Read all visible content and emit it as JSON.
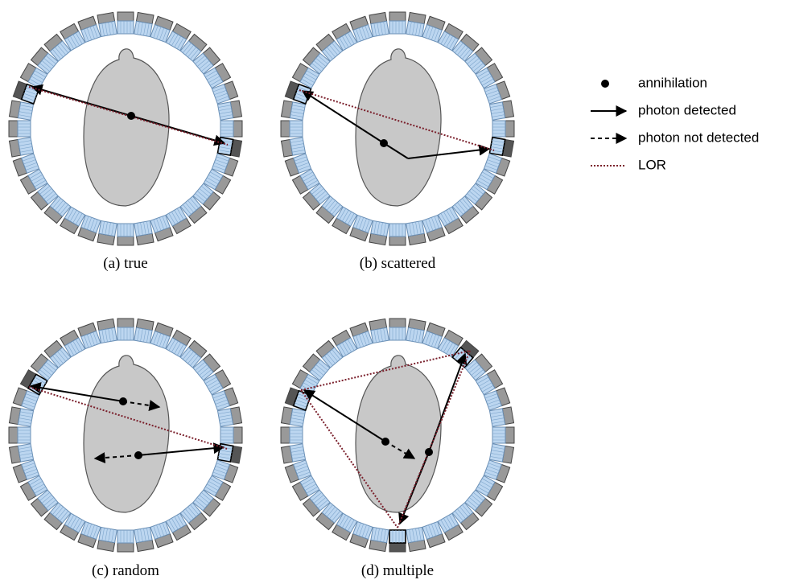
{
  "captions": [
    "(a) true",
    "(b) scattered",
    "(c) random",
    "(d) multiple"
  ],
  "legend": [
    "annihilation",
    "photon detected",
    "photon not detected",
    "LOR"
  ]
}
